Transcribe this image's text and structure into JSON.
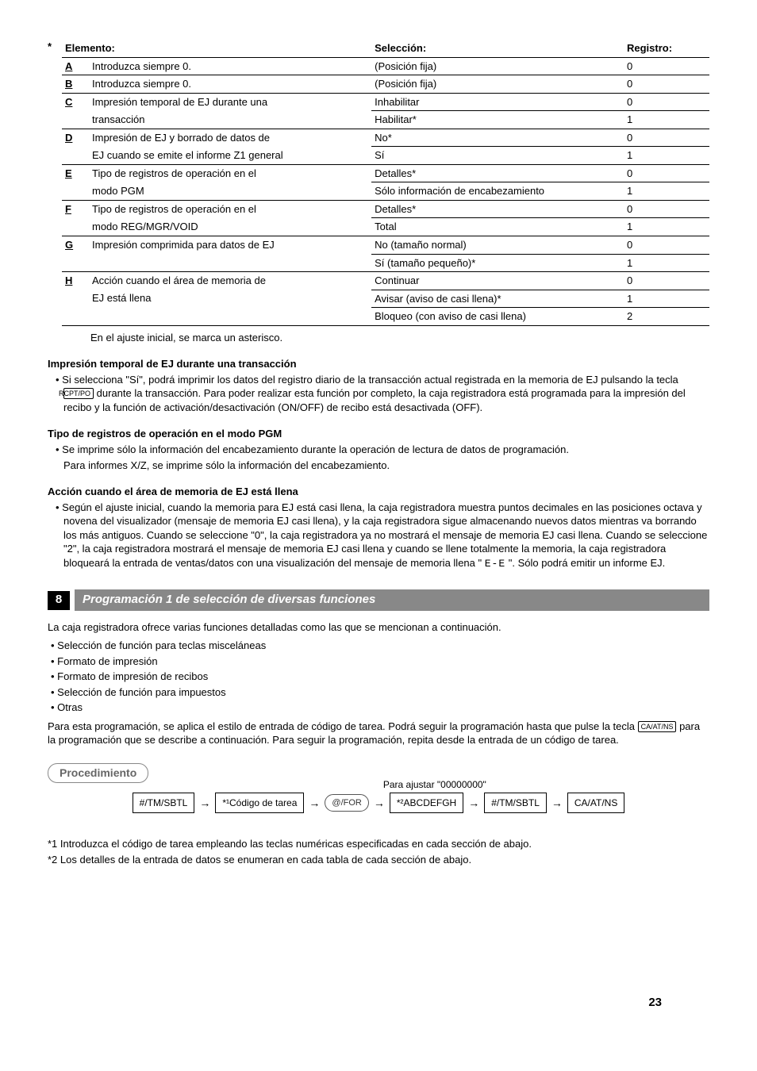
{
  "table": {
    "headers": [
      "Elemento:",
      "Selección:",
      "Registro:"
    ],
    "rows": [
      {
        "letter": "A",
        "item": "Introduzca siempre 0.",
        "sel": "(Posición fija)",
        "reg": "0",
        "last": true
      },
      {
        "letter": "B",
        "item": "Introduzca siempre 0.",
        "sel": "(Posición fija)",
        "reg": "0",
        "last": true
      },
      {
        "letter": "C",
        "item": "Impresión temporal de EJ durante una",
        "sel": "Inhabilitar",
        "reg": "0"
      },
      {
        "letter": "",
        "item": "transacción",
        "sel": "Habilitar*",
        "reg": "1",
        "last": true,
        "noLetterBorder": true
      },
      {
        "letter": "D",
        "item": "Impresión de EJ y borrado de datos de",
        "sel": "No*",
        "reg": "0"
      },
      {
        "letter": "",
        "item": "EJ cuando se emite el informe Z1 general",
        "sel": "Sí",
        "reg": "1",
        "last": true,
        "noLetterBorder": true
      },
      {
        "letter": "E",
        "item": "Tipo de registros de operación en el",
        "sel": "Detalles*",
        "reg": "0"
      },
      {
        "letter": "",
        "item": "modo PGM",
        "sel": "Sólo información de encabezamiento",
        "reg": "1",
        "last": true,
        "noLetterBorder": true
      },
      {
        "letter": "F",
        "item": "Tipo de registros de operación en el",
        "sel": "Detalles*",
        "reg": "0"
      },
      {
        "letter": "",
        "item": "modo REG/MGR/VOID",
        "sel": "Total",
        "reg": "1",
        "last": true,
        "noLetterBorder": true
      },
      {
        "letter": "G",
        "item": "Impresión comprimida para datos de EJ",
        "sel": "No (tamaño normal)",
        "reg": "0"
      },
      {
        "letter": "",
        "item": "",
        "sel": "Sí (tamaño pequeño)*",
        "reg": "1",
        "last": true,
        "noLetterBorder": true
      },
      {
        "letter": "H",
        "item": "Acción cuando el área de memoria de",
        "sel": "Continuar",
        "reg": "0"
      },
      {
        "letter": "",
        "item": "EJ está llena",
        "sel": "Avisar (aviso de casi llena)*",
        "reg": "1",
        "noLetterBorder": true
      },
      {
        "letter": "",
        "item": "",
        "sel": "Bloqueo (con aviso de casi llena)",
        "reg": "2",
        "last": true,
        "noLetterBorder": true
      }
    ],
    "footnote": "En el ajuste inicial, se marca un asterisco."
  },
  "sections": {
    "s1": {
      "title": "Impresión temporal de EJ durante una transacción",
      "bullet_pre": "• Si selecciona \"Sí\", podrá imprimir los datos del registro diario de la transacción actual registrada en la memoria de EJ pulsando la tecla ",
      "key": "RCPT/PO",
      "bullet_post": " durante la transacción. Para poder realizar esta función por completo, la caja registradora está programada para la impresión del recibo y la función de activación/desactivación (ON/OFF) de recibo está desactivada (OFF)."
    },
    "s2": {
      "title": "Tipo de registros de operación en el modo PGM",
      "b1": "• Se imprime sólo la información del encabezamiento durante la operación de lectura de datos de programación.",
      "b2": "Para informes X/Z, se imprime sólo la información del encabezamiento."
    },
    "s3": {
      "title": "Acción cuando el área de memoria de EJ está llena",
      "bullet_pre": "• Según el ajuste inicial, cuando la memoria para EJ está casi llena, la caja registradora muestra puntos decimales en las posiciones octava y novena del visualizador (mensaje de memoria EJ casi llena), y la caja registradora sigue almacenando nuevos datos mientras va borrando los más antiguos. Cuando se seleccione \"0\", la caja registradora ya no mostrará el mensaje de memoria EJ casi llena. Cuando se seleccione \"2\", la caja registradora mostrará el mensaje de memoria EJ casi llena y cuando se llene totalmente la memoria, la caja registradora bloqueará la entrada de ventas/datos con una visualización del mensaje de memoria llena \" ",
      "seg": "E-E",
      "bullet_post": " \". Sólo podrá emitir un informe EJ."
    }
  },
  "section8": {
    "num": "8",
    "title": "Programación 1 de selección de diversas funciones",
    "intro": "La caja registradora ofrece varias funciones detalladas como las que se mencionan a continuación.",
    "items": [
      "• Selección de función para teclas misceláneas",
      "• Formato de impresión",
      "• Formato de impresión de recibos",
      "• Selección de función para impuestos",
      "• Otras"
    ],
    "para_pre": "Para esta programación, se aplica el estilo de entrada de código de tarea. Podrá seguir la programación hasta que pulse la tecla ",
    "key": "CA/AT/NS",
    "para_post": " para la programación que se describe a continuación. Para seguir la programación, repita desde la entrada de un código de tarea."
  },
  "procedure": {
    "label": "Procedimiento",
    "note": "Para ajustar \"00000000\"",
    "n1": "#/TM/SBTL",
    "n2": "*¹Código de tarea",
    "n3": "@/FOR",
    "n4": "*²ABCDEFGH",
    "n5": "#/TM/SBTL",
    "n6": "CA/AT/NS"
  },
  "footnotes": {
    "f1": "*1  Introduzca el código de tarea empleando las teclas numéricas especificadas en cada sección de abajo.",
    "f2": "*2  Los detalles de la entrada de datos se enumeran en cada tabla de cada sección de abajo."
  },
  "pagenum": "23"
}
